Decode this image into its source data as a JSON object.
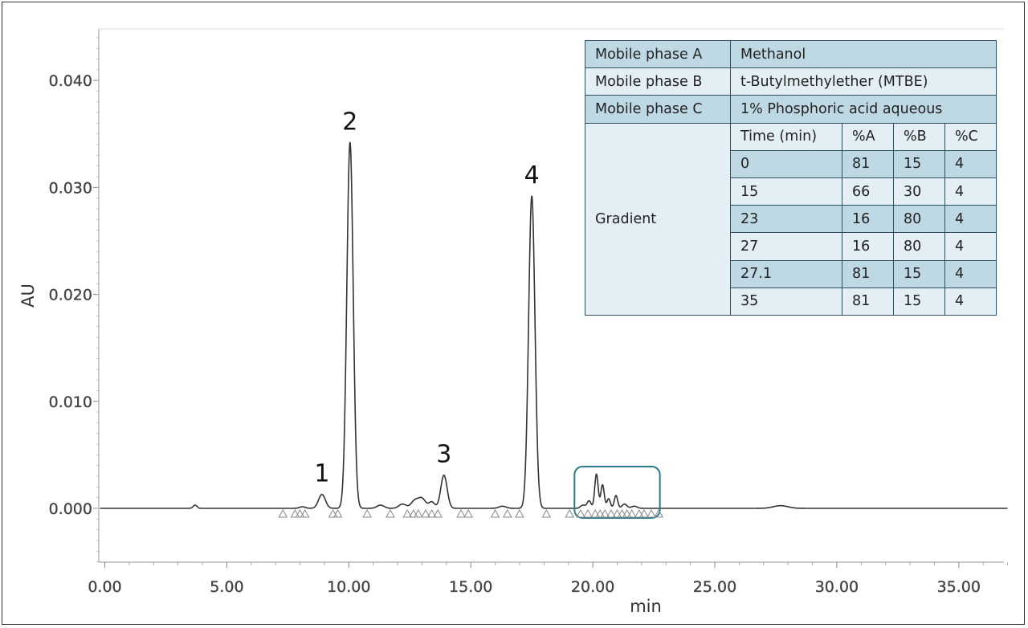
{
  "chart_data": {
    "type": "line",
    "title": "",
    "xlabel": "min",
    "ylabel": "AU",
    "xlim": [
      0,
      37
    ],
    "ylim": [
      -0.005,
      0.045
    ],
    "xticks": [
      0,
      5,
      10,
      15,
      20,
      25,
      30,
      35
    ],
    "xtick_labels": [
      "0.00",
      "5.00",
      "10.00",
      "15.00",
      "20.00",
      "25.00",
      "30.00",
      "35.00"
    ],
    "yticks": [
      0,
      0.01,
      0.02,
      0.03,
      0.04
    ],
    "ytick_labels": [
      "0.000",
      "0.010",
      "0.020",
      "0.030",
      "0.040"
    ],
    "grid": false,
    "line_color": "#333333",
    "peaks": [
      {
        "x": 3.7,
        "height": 0.0003,
        "width": 0.08
      },
      {
        "x": 8.1,
        "height": 0.00015,
        "width": 0.12
      },
      {
        "x": 8.9,
        "height": 0.0013,
        "width": 0.14
      },
      {
        "x": 10.05,
        "height": 0.0342,
        "width": 0.13
      },
      {
        "x": 11.3,
        "height": 0.0003,
        "width": 0.15
      },
      {
        "x": 12.2,
        "height": 0.0004,
        "width": 0.15
      },
      {
        "x": 12.7,
        "height": 0.0007,
        "width": 0.15
      },
      {
        "x": 13.0,
        "height": 0.0009,
        "width": 0.15
      },
      {
        "x": 13.4,
        "height": 0.0006,
        "width": 0.12
      },
      {
        "x": 13.9,
        "height": 0.0031,
        "width": 0.13
      },
      {
        "x": 16.3,
        "height": 0.0002,
        "width": 0.15
      },
      {
        "x": 17.5,
        "height": 0.0292,
        "width": 0.13
      },
      {
        "x": 19.6,
        "height": 0.0003,
        "width": 0.1
      },
      {
        "x": 19.85,
        "height": 0.0007,
        "width": 0.08
      },
      {
        "x": 20.15,
        "height": 0.0032,
        "width": 0.07
      },
      {
        "x": 20.4,
        "height": 0.0022,
        "width": 0.07
      },
      {
        "x": 20.65,
        "height": 0.0009,
        "width": 0.07
      },
      {
        "x": 20.95,
        "height": 0.0012,
        "width": 0.07
      },
      {
        "x": 21.3,
        "height": 0.0004,
        "width": 0.1
      },
      {
        "x": 21.7,
        "height": 0.0002,
        "width": 0.12
      },
      {
        "x": 27.7,
        "height": 0.00025,
        "width": 0.3
      }
    ],
    "peak_labels": [
      {
        "text": "1",
        "x": 8.9,
        "y": 0.0013
      },
      {
        "text": "2",
        "x": 10.05,
        "y": 0.0342
      },
      {
        "text": "3",
        "x": 13.9,
        "y": 0.0031
      },
      {
        "text": "4",
        "x": 17.5,
        "y": 0.0292
      }
    ],
    "integration_markers": [
      7.3,
      7.8,
      8.0,
      8.2,
      9.35,
      9.55,
      10.75,
      11.7,
      12.4,
      12.65,
      12.85,
      13.15,
      13.4,
      13.65,
      14.6,
      14.9,
      16.0,
      16.5,
      17.0,
      18.1,
      19.05,
      19.5,
      19.8,
      20.1,
      20.3,
      20.5,
      20.75,
      21.0,
      21.2,
      21.4,
      21.6,
      21.9,
      22.1,
      22.4,
      22.7
    ],
    "highlight_box": {
      "x0": 19.25,
      "x1": 22.75,
      "y0": -0.0009,
      "y1": 0.0039,
      "color": "#2a7b8a"
    }
  },
  "table": {
    "mobile_a_label": "Mobile phase A",
    "mobile_a_value": "Methanol",
    "mobile_b_label": "Mobile phase B",
    "mobile_b_value": "t-Butylmethylether (MTBE)",
    "mobile_c_label": "Mobile phase C",
    "mobile_c_value": "1% Phosphoric acid aqueous",
    "gradient_label": "Gradient",
    "headers": [
      "Time (min)",
      "%A",
      "%B",
      "%C"
    ],
    "rows": [
      [
        "0",
        "81",
        "15",
        "4"
      ],
      [
        "15",
        "66",
        "30",
        "4"
      ],
      [
        "23",
        "16",
        "80",
        "4"
      ],
      [
        "27",
        "16",
        "80",
        "4"
      ],
      [
        "27.1",
        "81",
        "15",
        "4"
      ],
      [
        "35",
        "81",
        "15",
        "4"
      ]
    ]
  },
  "colors": {
    "table_dark": "#bfd9e4",
    "table_light": "#e3eff4",
    "table_border": "#2d4f5f"
  }
}
